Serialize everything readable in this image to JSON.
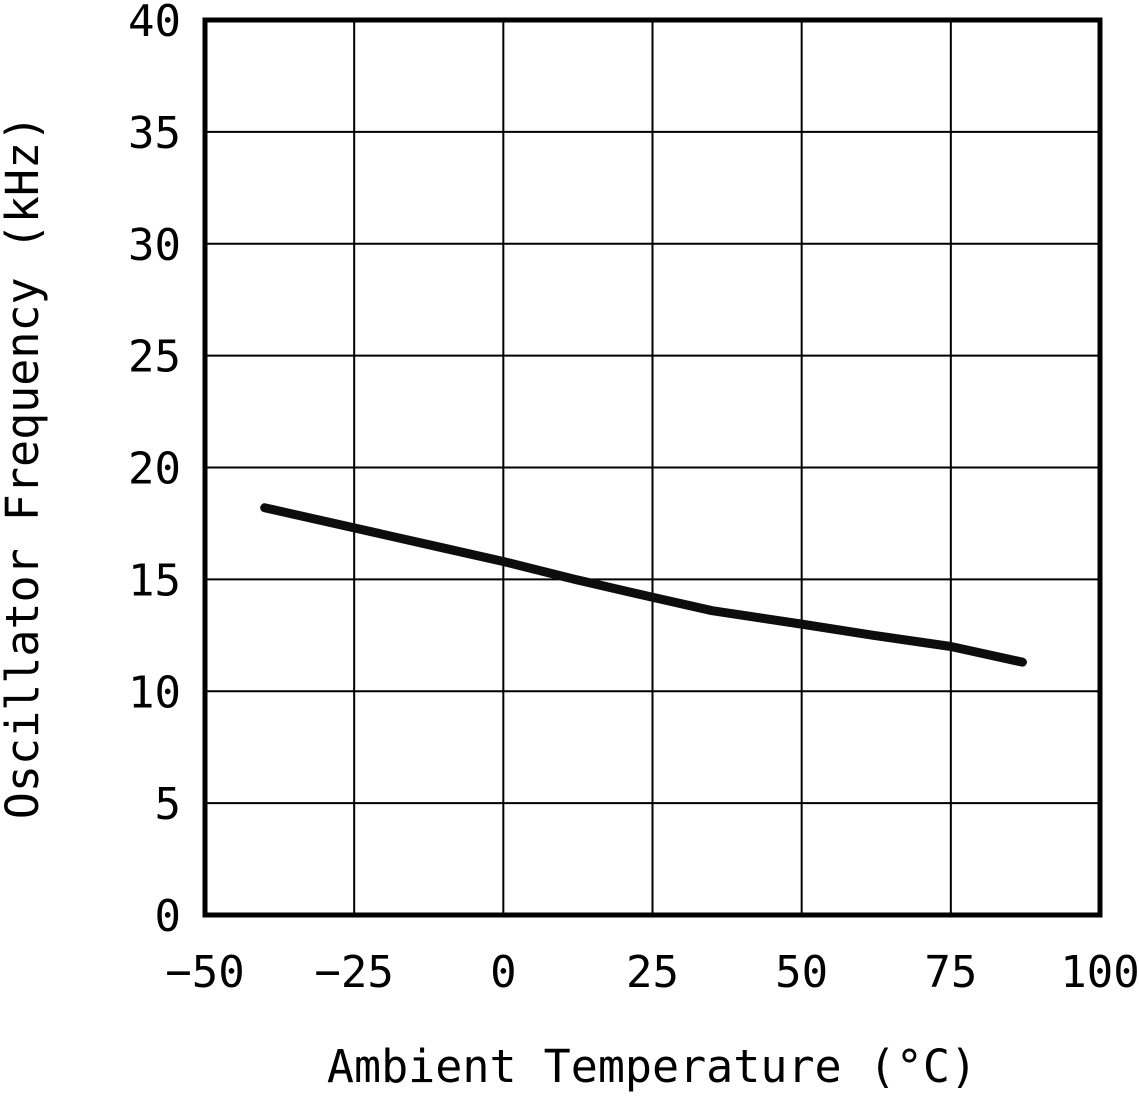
{
  "chart_data": {
    "type": "line",
    "title": "",
    "xlabel": "Ambient Temperature (°C)",
    "ylabel": "Oscillator Frequency (kHz)",
    "xlim": [
      -50,
      100
    ],
    "ylim": [
      0,
      40
    ],
    "xticks": [
      -50,
      -25,
      0,
      25,
      50,
      75,
      100
    ],
    "yticks": [
      0,
      5,
      10,
      15,
      20,
      25,
      30,
      35,
      40
    ],
    "grid": true,
    "legend": false,
    "line_color": "#0d0d0d",
    "line_width": 9,
    "border_color": "#000000",
    "grid_color": "#000000",
    "series": [
      {
        "name": "oscillator-frequency",
        "x": [
          -40,
          -25,
          -10,
          0,
          12,
          25,
          35,
          50,
          62,
          75,
          87
        ],
        "y": [
          18.2,
          17.3,
          16.4,
          15.8,
          15.0,
          14.2,
          13.6,
          13.0,
          12.5,
          12.0,
          11.3
        ]
      }
    ]
  }
}
